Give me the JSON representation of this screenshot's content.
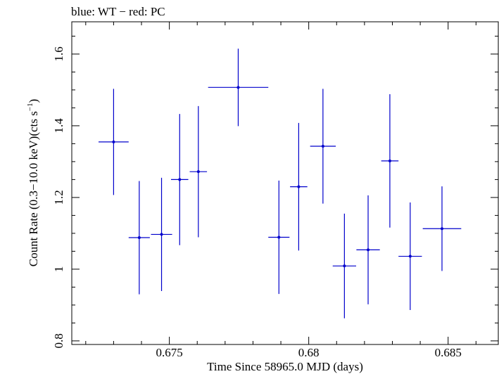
{
  "chart_data": {
    "type": "scatter",
    "title": "blue: WT − red: PC",
    "xlabel": "Time Since 58965.0 MJD (days)",
    "ylabel_main": "Count Rate (0.3−10.0 keV)(cts s",
    "ylabel_sup": "−1",
    "ylabel_close": ")",
    "xlim": [
      0.6715,
      0.6868
    ],
    "ylim": [
      0.79,
      1.69
    ],
    "x_ticks": [
      {
        "value": 0.675,
        "label": "0.675"
      },
      {
        "value": 0.68,
        "label": "0.68"
      },
      {
        "value": 0.685,
        "label": "0.685"
      }
    ],
    "y_ticks": [
      {
        "value": 0.8,
        "label": "0.8"
      },
      {
        "value": 1.0,
        "label": "1"
      },
      {
        "value": 1.2,
        "label": "1.2"
      },
      {
        "value": 1.4,
        "label": "1.4"
      },
      {
        "value": 1.6,
        "label": "1.6"
      }
    ],
    "series": [
      {
        "name": "WT",
        "color": "#0000cc",
        "points": [
          {
            "x": 0.673,
            "xerr": 0.00054,
            "y": 1.355,
            "yerr": 0.148
          },
          {
            "x": 0.67392,
            "xerr": 0.00038,
            "y": 1.088,
            "yerr": 0.158
          },
          {
            "x": 0.67472,
            "xerr": 0.00038,
            "y": 1.097,
            "yerr": 0.158
          },
          {
            "x": 0.67537,
            "xerr": 0.00031,
            "y": 1.25,
            "yerr": 0.183
          },
          {
            "x": 0.67604,
            "xerr": 0.00031,
            "y": 1.272,
            "yerr": 0.183
          },
          {
            "x": 0.67747,
            "xerr": 0.00108,
            "y": 1.507,
            "yerr": 0.108
          },
          {
            "x": 0.67893,
            "xerr": 0.00038,
            "y": 1.089,
            "yerr": 0.158
          },
          {
            "x": 0.67964,
            "xerr": 0.00031,
            "y": 1.23,
            "yerr": 0.178
          },
          {
            "x": 0.68051,
            "xerr": 0.00046,
            "y": 1.343,
            "yerr": 0.16
          },
          {
            "x": 0.68128,
            "xerr": 0.00042,
            "y": 1.009,
            "yerr": 0.146
          },
          {
            "x": 0.68213,
            "xerr": 0.00042,
            "y": 1.054,
            "yerr": 0.152
          },
          {
            "x": 0.68291,
            "xerr": 0.00031,
            "y": 1.302,
            "yerr": 0.186
          },
          {
            "x": 0.68364,
            "xerr": 0.00042,
            "y": 1.036,
            "yerr": 0.15
          },
          {
            "x": 0.68478,
            "xerr": 0.00069,
            "y": 1.113,
            "yerr": 0.118
          }
        ]
      }
    ]
  }
}
